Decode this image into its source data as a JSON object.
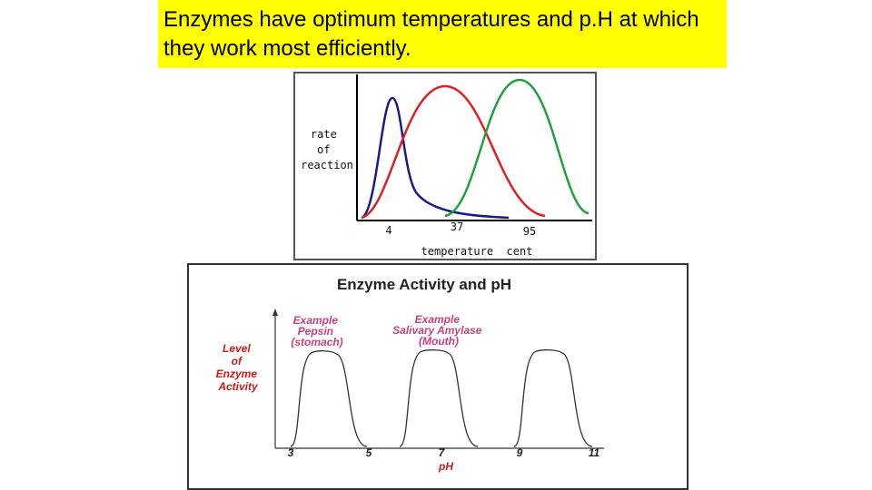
{
  "header": {
    "title": "Enzymes have optimum temperatures and p.H at which they work most efficiently."
  },
  "temperature_chart": {
    "y_label": [
      "rate",
      "of",
      "reaction"
    ],
    "ticks": [
      "4",
      "37",
      "95"
    ],
    "x_label": "temperature  cent"
  },
  "ph_chart": {
    "title": "Enzyme Activity and pH",
    "y_label": [
      "Level",
      "of",
      "Enzyme",
      "Activity"
    ],
    "annotations": [
      [
        "Example",
        "Pepsin",
        "(stomach)"
      ],
      [
        "Example",
        "Salivary Amylase",
        "(Mouth)"
      ]
    ],
    "ticks": [
      "3",
      "5",
      "7",
      "9",
      "11"
    ],
    "x_label": "pH"
  }
}
